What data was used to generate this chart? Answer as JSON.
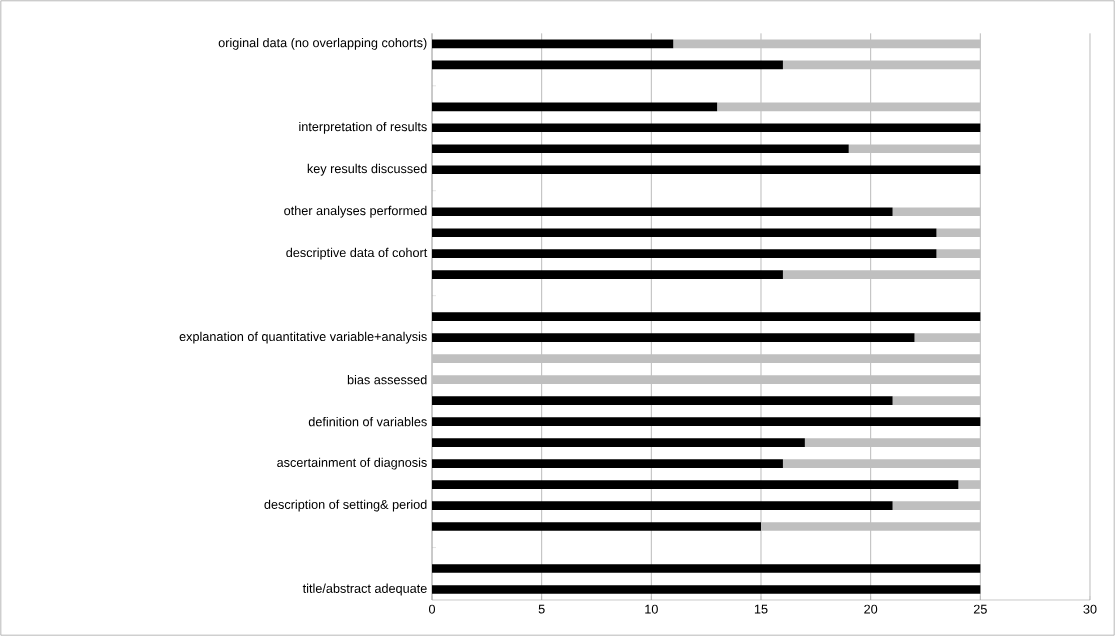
{
  "chart_data": {
    "type": "bar",
    "orientation": "horizontal",
    "stacked": true,
    "categories": [
      "original data (no overlapping cohorts)",
      null,
      null,
      null,
      "interpretation of results",
      null,
      "key results discussed",
      null,
      "other analyses performed",
      null,
      "descriptive data of cohort",
      null,
      null,
      null,
      "explanation of quantitative variable+analysis",
      null,
      "bias assessed",
      null,
      "definition of variables",
      null,
      "ascertainment of diagnosis",
      null,
      "description of setting& period",
      null,
      null,
      null,
      "title/abstract adequate"
    ],
    "series": [
      {
        "color": "#000000",
        "values": [
          11,
          16,
          null,
          13,
          25,
          19,
          25,
          null,
          21,
          23,
          23,
          16,
          null,
          25,
          22,
          0,
          0,
          21,
          25,
          17,
          16,
          24,
          21,
          15,
          null,
          25,
          25
        ]
      },
      {
        "color": "#bfbfbf",
        "values": [
          14,
          9,
          null,
          12,
          0,
          6,
          0,
          null,
          4,
          2,
          2,
          9,
          null,
          0,
          3,
          25,
          25,
          4,
          0,
          8,
          9,
          1,
          4,
          10,
          null,
          0,
          0
        ]
      }
    ],
    "xlim": [
      0,
      30
    ],
    "xticks": [
      0,
      5,
      10,
      15,
      20,
      25,
      30
    ],
    "grid": "x"
  }
}
